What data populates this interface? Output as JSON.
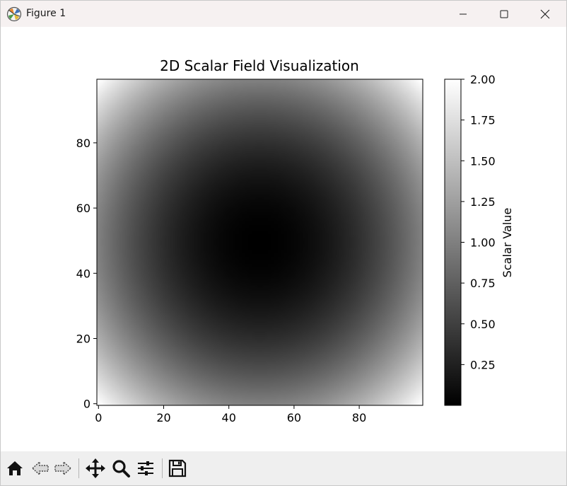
{
  "window": {
    "title": "Figure 1",
    "icons": {
      "app": "matplotlib-app-icon",
      "minimize": "minimize-icon",
      "maximize": "maximize-icon",
      "close": "close-icon"
    }
  },
  "toolbar": {
    "tools": [
      {
        "name": "home-icon",
        "label": "Home"
      },
      {
        "name": "back-arrow-icon",
        "label": "Back"
      },
      {
        "name": "forward-arrow-icon",
        "label": "Forward"
      },
      {
        "name": "pan-icon",
        "label": "Pan"
      },
      {
        "name": "zoom-icon",
        "label": "Zoom"
      },
      {
        "name": "configure-subplots-icon",
        "label": "Configure subplots"
      },
      {
        "name": "save-icon",
        "label": "Save"
      }
    ]
  },
  "chart_data": {
    "type": "heatmap",
    "title": "2D Scalar Field Visualization",
    "xlabel": "",
    "ylabel": "",
    "x_range": [
      0,
      99
    ],
    "y_range": [
      0,
      99
    ],
    "xticks": [
      0,
      20,
      40,
      60,
      80
    ],
    "yticks": [
      0,
      20,
      40,
      60,
      80
    ],
    "colormap": "gray",
    "field": "normalized squared distance from center (49.5, 49.5)",
    "grid": false,
    "colorbar": {
      "label": "Scalar Value",
      "range": [
        0,
        2.0
      ],
      "ticks": [
        0.25,
        0.5,
        0.75,
        1.0,
        1.25,
        1.5,
        1.75,
        2.0
      ],
      "tick_labels": [
        "0.25",
        "0.50",
        "0.75",
        "1.00",
        "1.25",
        "1.50",
        "1.75",
        "2.00"
      ],
      "low_color": "#000000",
      "high_color": "#ffffff"
    }
  }
}
